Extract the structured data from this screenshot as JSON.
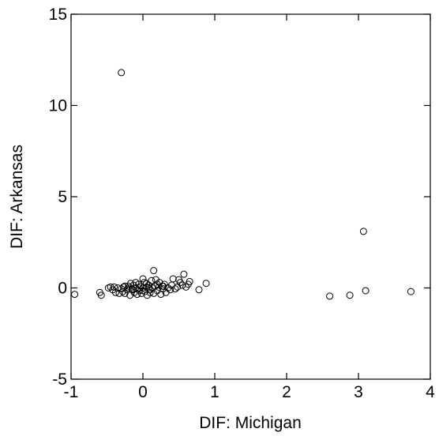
{
  "chart_data": {
    "type": "scatter",
    "title": "",
    "xlabel": "DIF: Michigan",
    "ylabel": "DIF: Arkansas",
    "xlim": [
      -1,
      4
    ],
    "ylim": [
      -5,
      15
    ],
    "xticks": [
      -1,
      0,
      1,
      2,
      3,
      4
    ],
    "yticks": [
      -5,
      0,
      5,
      10,
      15
    ],
    "xtick_labels": [
      "-1",
      "0",
      "1",
      "2",
      "3",
      "4"
    ],
    "ytick_labels": [
      "-5",
      "0",
      "5",
      "10",
      "15"
    ],
    "grid": false,
    "marker": "open-circle",
    "series": [
      {
        "points": [
          [
            -0.3,
            11.8
          ],
          [
            3.07,
            3.1
          ],
          [
            -0.95,
            -0.35
          ],
          [
            -0.6,
            -0.25
          ],
          [
            -0.58,
            -0.4
          ],
          [
            0.88,
            0.25
          ],
          [
            0.78,
            -0.1
          ],
          [
            2.6,
            -0.45
          ],
          [
            2.88,
            -0.4
          ],
          [
            3.1,
            -0.15
          ],
          [
            3.73,
            -0.2
          ],
          [
            -0.48,
            0.0
          ],
          [
            -0.45,
            0.05
          ],
          [
            -0.42,
            -0.1
          ],
          [
            -0.4,
            0.05
          ],
          [
            -0.38,
            -0.25
          ],
          [
            -0.35,
            0.0
          ],
          [
            -0.33,
            -0.3
          ],
          [
            -0.3,
            -0.05
          ],
          [
            -0.28,
            -0.2
          ],
          [
            -0.27,
            0.05
          ],
          [
            -0.25,
            -0.3
          ],
          [
            -0.22,
            -0.1
          ],
          [
            -0.2,
            0.1
          ],
          [
            -0.18,
            -0.4
          ],
          [
            -0.15,
            -0.1
          ],
          [
            -0.13,
            0.15
          ],
          [
            -0.12,
            -0.25
          ],
          [
            -0.1,
            0.0
          ],
          [
            -0.08,
            -0.35
          ],
          [
            -0.06,
            0.2
          ],
          [
            -0.05,
            -0.15
          ],
          [
            -0.03,
            0.1
          ],
          [
            -0.02,
            -0.3
          ],
          [
            0.0,
            0.0
          ],
          [
            0.0,
            0.5
          ],
          [
            0.02,
            0.3
          ],
          [
            0.03,
            -0.2
          ],
          [
            0.05,
            0.05
          ],
          [
            0.06,
            -0.4
          ],
          [
            0.08,
            0.15
          ],
          [
            0.1,
            -0.1
          ],
          [
            0.12,
            0.4
          ],
          [
            0.13,
            0.0
          ],
          [
            0.15,
            0.95
          ],
          [
            0.15,
            -0.3
          ],
          [
            0.17,
            0.1
          ],
          [
            0.18,
            0.45
          ],
          [
            0.2,
            -0.15
          ],
          [
            0.22,
            0.05
          ],
          [
            0.23,
            0.3
          ],
          [
            0.25,
            -0.35
          ],
          [
            0.27,
            0.1
          ],
          [
            0.28,
            -0.05
          ],
          [
            0.3,
            0.2
          ],
          [
            0.32,
            -0.25
          ],
          [
            0.35,
            0.0
          ],
          [
            0.38,
            -0.1
          ],
          [
            0.4,
            0.15
          ],
          [
            0.42,
            0.5
          ],
          [
            0.45,
            -0.05
          ],
          [
            0.48,
            0.05
          ],
          [
            0.5,
            0.45
          ],
          [
            0.52,
            0.3
          ],
          [
            0.55,
            0.15
          ],
          [
            0.57,
            0.75
          ],
          [
            0.6,
            0.05
          ],
          [
            0.63,
            0.2
          ],
          [
            0.65,
            0.35
          ],
          [
            -0.2,
            0.0
          ],
          [
            -0.17,
            0.25
          ],
          [
            -0.1,
            0.3
          ],
          [
            -0.05,
            0.0
          ],
          [
            0.05,
            0.25
          ],
          [
            0.1,
            -0.25
          ],
          [
            0.2,
            0.2
          ],
          [
            -0.25,
            0.1
          ],
          [
            -0.15,
            -0.05
          ],
          [
            0.0,
            -0.15
          ],
          [
            0.08,
            0.0
          ],
          [
            0.28,
            0.1
          ]
        ]
      }
    ]
  }
}
